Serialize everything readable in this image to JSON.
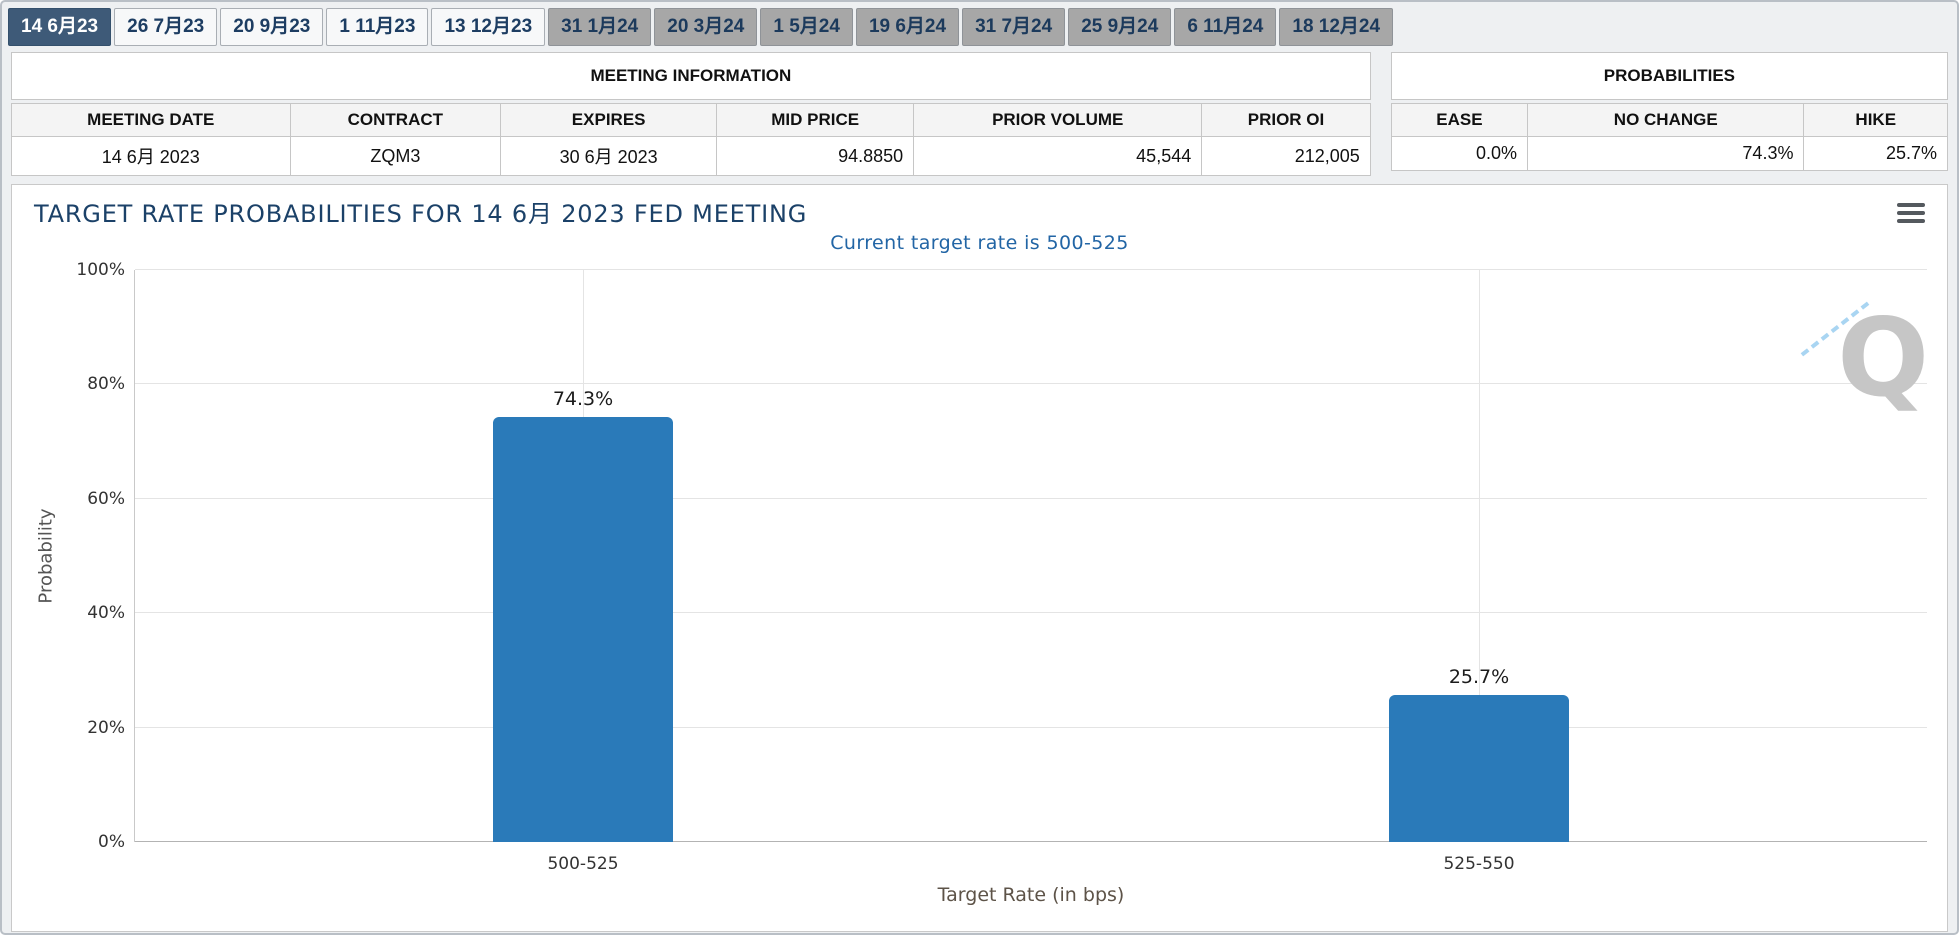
{
  "tabs": [
    {
      "label": "14 6月23",
      "variant": "selected"
    },
    {
      "label": "26 7月23",
      "variant": "light"
    },
    {
      "label": "20 9月23",
      "variant": "light"
    },
    {
      "label": "1 11月23",
      "variant": "light"
    },
    {
      "label": "13 12月23",
      "variant": "light"
    },
    {
      "label": "31 1月24",
      "variant": "gray"
    },
    {
      "label": "20 3月24",
      "variant": "gray"
    },
    {
      "label": "1 5月24",
      "variant": "gray"
    },
    {
      "label": "19 6月24",
      "variant": "gray"
    },
    {
      "label": "31 7月24",
      "variant": "gray"
    },
    {
      "label": "25 9月24",
      "variant": "gray"
    },
    {
      "label": "6 11月24",
      "variant": "gray"
    },
    {
      "label": "18 12月24",
      "variant": "gray"
    }
  ],
  "meeting_information": {
    "title": "MEETING INFORMATION",
    "columns": [
      "MEETING DATE",
      "CONTRACT",
      "EXPIRES",
      "MID PRICE",
      "PRIOR VOLUME",
      "PRIOR OI"
    ],
    "row": {
      "meeting_date": "14 6月 2023",
      "contract": "ZQM3",
      "expires": "30 6月 2023",
      "mid_price": "94.8850",
      "prior_volume": "45,544",
      "prior_oi": "212,005"
    }
  },
  "probabilities": {
    "title": "PROBABILITIES",
    "columns": [
      "EASE",
      "NO CHANGE",
      "HIKE"
    ],
    "row": {
      "ease": "0.0%",
      "no_change": "74.3%",
      "hike": "25.7%"
    }
  },
  "chart_data": {
    "type": "bar",
    "title": "TARGET RATE PROBABILITIES FOR 14 6月 2023 FED MEETING",
    "subtitle": "Current target rate is 500-525",
    "categories": [
      "500-525",
      "525-550"
    ],
    "values": [
      74.3,
      25.7
    ],
    "value_labels": [
      "74.3%",
      "25.7%"
    ],
    "xlabel": "Target Rate (in bps)",
    "ylabel": "Probability",
    "ylim": [
      0,
      100
    ],
    "yticks": [
      0,
      20,
      40,
      60,
      80,
      100
    ],
    "ytick_labels": [
      "0%",
      "20%",
      "40%",
      "60%",
      "80%",
      "100%"
    ],
    "grid": true,
    "legend": "none",
    "bar_color": "#2a7ab9"
  },
  "icons": {
    "chart_menu": "hamburger-menu-icon",
    "watermark_letter": "Q"
  },
  "colors": {
    "selected_tab_bg": "#3e5a78",
    "tab_text": "#1d3d62",
    "bar": "#2a7ab9",
    "chart_title": "#1b4168",
    "chart_subtitle": "#2265a5"
  }
}
